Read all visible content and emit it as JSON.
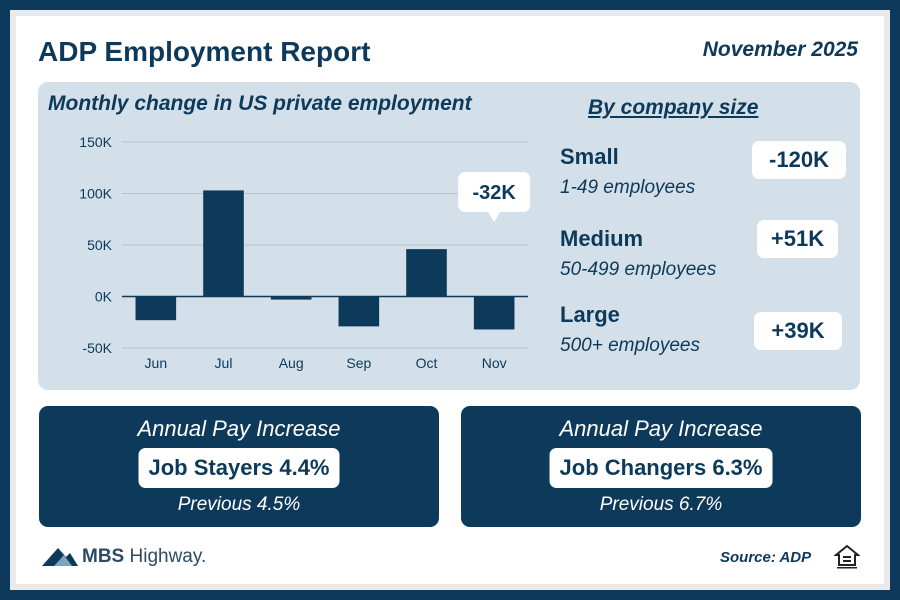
{
  "header": {
    "title": "ADP Employment Report",
    "date": "November 2025"
  },
  "chart_data": {
    "type": "bar",
    "title": "Monthly change in US private employment",
    "categories": [
      "Jun",
      "Jul",
      "Aug",
      "Sep",
      "Oct",
      "Nov"
    ],
    "values": [
      -23,
      103,
      -3,
      -29,
      46,
      -32
    ],
    "y_unit": "thousands",
    "yticks": [
      "150K",
      "100K",
      "50K",
      "0K",
      "-50K"
    ],
    "ytick_values": [
      150,
      100,
      50,
      0,
      -50
    ],
    "ylim": [
      -50,
      150
    ],
    "grid": true,
    "annotation": {
      "category": "Nov",
      "label": "-32K"
    },
    "bar_color": "#0d3a5a"
  },
  "company_size": {
    "title": "By company size",
    "items": [
      {
        "name": "Small",
        "range": "1-49 employees",
        "value": "-120K"
      },
      {
        "name": "Medium",
        "range": "50-499 employees",
        "value": "+51K"
      },
      {
        "name": "Large",
        "range": "500+ employees",
        "value": "+39K"
      }
    ]
  },
  "pay": {
    "stayers": {
      "title": "Annual Pay Increase",
      "label": "Job Stayers 4.4%",
      "previous": "Previous 4.5%"
    },
    "changers": {
      "title": "Annual Pay Increase",
      "label": "Job Changers 6.3%",
      "previous": "Previous 6.7%"
    }
  },
  "footer": {
    "logo_main": "MBS",
    "logo_rest": " Highway.",
    "source": "Source: ADP"
  },
  "colors": {
    "primary": "#0d3a5a",
    "panel": "#d3dfe9"
  }
}
